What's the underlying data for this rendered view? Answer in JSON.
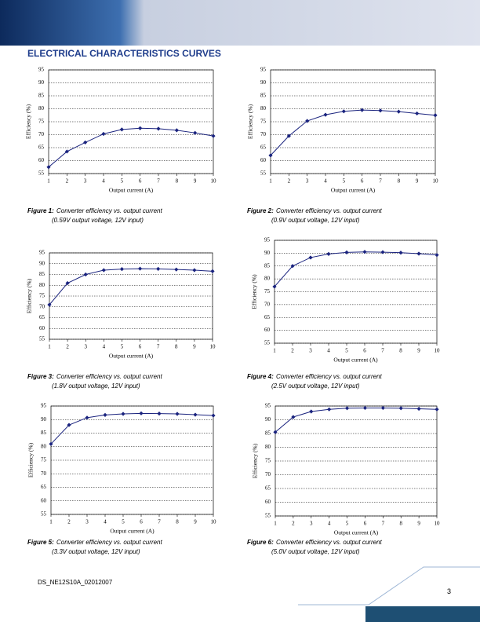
{
  "header": {
    "title": "ELECTRICAL CHARACTERISTICS CURVES"
  },
  "figures": [
    {
      "label": "Figure 1:",
      "caption": "Converter efficiency vs. output current",
      "note": "(0.59V output voltage, 12V input)"
    },
    {
      "label": "Figure 2:",
      "caption": "Converter efficiency vs. output current",
      "note": "(0.9V output voltage, 12V input)"
    },
    {
      "label": "Figure 3:",
      "caption": "Converter efficiency vs. output current",
      "note": "(1.8V output voltage, 12V input)"
    },
    {
      "label": "Figure 4:",
      "caption": "Converter efficiency vs. output current",
      "note": "(2.5V output voltage, 12V input)"
    },
    {
      "label": "Figure 5:",
      "caption": "Converter efficiency vs. output current",
      "note": "(3.3V output voltage, 12V input)"
    },
    {
      "label": "Figure 6:",
      "caption": "Converter efficiency vs. output current",
      "note": "(5.0V output voltage, 12V input)"
    }
  ],
  "footer": {
    "doc_id": "DS_NE12S10A_02012007",
    "page": "3"
  },
  "chart_data": [
    {
      "type": "line",
      "x_label": "Output current (A)",
      "y_label": "Efficiency (%)",
      "x": [
        1,
        2,
        3,
        4,
        5,
        6,
        7,
        8,
        9,
        10
      ],
      "xlim": [
        1,
        10
      ],
      "xticks": [
        1,
        2,
        3,
        4,
        5,
        6,
        7,
        8,
        9,
        10
      ],
      "ylim": [
        55,
        95
      ],
      "yticks": [
        55,
        60,
        65,
        70,
        75,
        80,
        85,
        90,
        95
      ],
      "grid": true,
      "series": [
        {
          "color": "#1a237e",
          "values": [
            57.5,
            63.5,
            67,
            70.3,
            72,
            72.5,
            72.3,
            71.7,
            70.7,
            69.5
          ]
        }
      ]
    },
    {
      "type": "line",
      "x_label": "Output current (A)",
      "y_label": "Efficiency (%)",
      "x": [
        1,
        2,
        3,
        4,
        5,
        6,
        7,
        8,
        9,
        10
      ],
      "xlim": [
        1,
        10
      ],
      "xticks": [
        1,
        2,
        3,
        4,
        5,
        6,
        7,
        8,
        9,
        10
      ],
      "ylim": [
        55,
        95
      ],
      "yticks": [
        55,
        60,
        65,
        70,
        75,
        80,
        85,
        90,
        95
      ],
      "grid": true,
      "series": [
        {
          "color": "#1a237e",
          "values": [
            62,
            69.5,
            75.3,
            77.7,
            79,
            79.5,
            79.3,
            78.9,
            78.2,
            77.5
          ]
        }
      ]
    },
    {
      "type": "line",
      "x_label": "Output current (A)",
      "y_label": "Efficiency (%)",
      "x": [
        1,
        2,
        3,
        4,
        5,
        6,
        7,
        8,
        9,
        10
      ],
      "xlim": [
        1,
        10
      ],
      "xticks": [
        1,
        2,
        3,
        4,
        5,
        6,
        7,
        8,
        9,
        10
      ],
      "ylim": [
        55,
        95
      ],
      "yticks": [
        55,
        60,
        65,
        70,
        75,
        80,
        85,
        90,
        95
      ],
      "grid": true,
      "series": [
        {
          "color": "#1a237e",
          "values": [
            71,
            81,
            85,
            87,
            87.5,
            87.7,
            87.6,
            87.3,
            87,
            86.5
          ]
        }
      ]
    },
    {
      "type": "line",
      "x_label": "Output current (A)",
      "y_label": "Efficiency (%)",
      "x": [
        1,
        2,
        3,
        4,
        5,
        6,
        7,
        8,
        9,
        10
      ],
      "xlim": [
        1,
        10
      ],
      "xticks": [
        1,
        2,
        3,
        4,
        5,
        6,
        7,
        8,
        9,
        10
      ],
      "ylim": [
        55,
        95
      ],
      "yticks": [
        55,
        60,
        65,
        70,
        75,
        80,
        85,
        90,
        95
      ],
      "grid": true,
      "series": [
        {
          "color": "#1a237e",
          "values": [
            77,
            85,
            88.3,
            89.7,
            90.3,
            90.5,
            90.4,
            90.2,
            89.8,
            89.3
          ]
        }
      ]
    },
    {
      "type": "line",
      "x_label": "Output current (A)",
      "y_label": "Efficiency (%)",
      "x": [
        1,
        2,
        3,
        4,
        5,
        6,
        7,
        8,
        9,
        10
      ],
      "xlim": [
        1,
        10
      ],
      "xticks": [
        1,
        2,
        3,
        4,
        5,
        6,
        7,
        8,
        9,
        10
      ],
      "ylim": [
        55,
        95
      ],
      "yticks": [
        55,
        60,
        65,
        70,
        75,
        80,
        85,
        90,
        95
      ],
      "grid": true,
      "series": [
        {
          "color": "#1a237e",
          "values": [
            81,
            88,
            90.7,
            91.7,
            92.1,
            92.3,
            92.2,
            92.1,
            91.8,
            91.5
          ]
        }
      ]
    },
    {
      "type": "line",
      "x_label": "Output current (A)",
      "y_label": "Efficiency (%)",
      "x": [
        1,
        2,
        3,
        4,
        5,
        6,
        7,
        8,
        9,
        10
      ],
      "xlim": [
        1,
        10
      ],
      "xticks": [
        1,
        2,
        3,
        4,
        5,
        6,
        7,
        8,
        9,
        10
      ],
      "ylim": [
        55,
        95
      ],
      "yticks": [
        55,
        60,
        65,
        70,
        75,
        80,
        85,
        90,
        95
      ],
      "grid": true,
      "series": [
        {
          "color": "#1a237e",
          "values": [
            85.5,
            91,
            93,
            93.8,
            94.2,
            94.3,
            94.3,
            94.2,
            94,
            93.8
          ]
        }
      ]
    }
  ]
}
